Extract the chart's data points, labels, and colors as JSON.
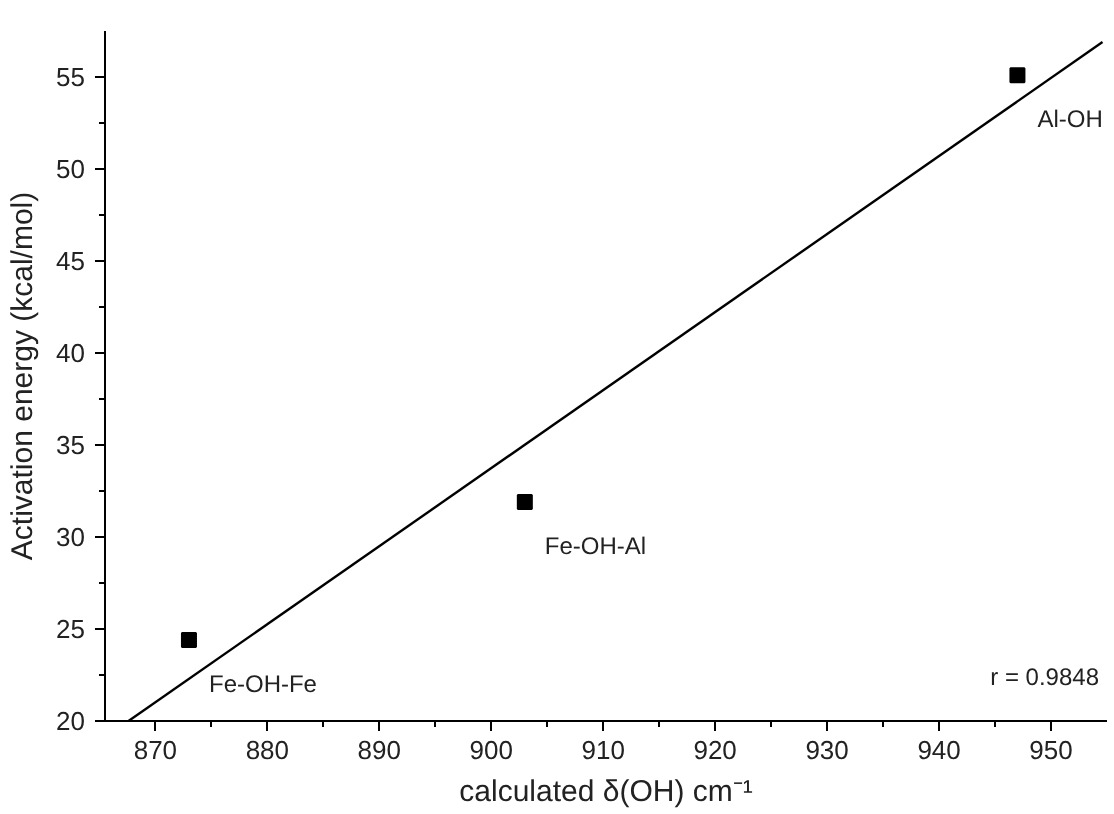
{
  "chart_data": {
    "type": "scatter",
    "xlabel": "calculated δ(OH) cm⁻¹",
    "ylabel": "Activation energy (kcal/mol)",
    "x": [
      873,
      903,
      947
    ],
    "series": [
      {
        "color": "#000000",
        "values": [
          24.4,
          31.9,
          55.1
        ],
        "marker": "square"
      },
      {
        "type": "line",
        "color": "#000000",
        "x": [
          867.6,
          954.6
        ],
        "values": [
          20,
          56.9
        ],
        "marker": "none",
        "line_style": "solid"
      }
    ],
    "xlim": [
      865.5,
      955
    ],
    "xticks": [
      870,
      880,
      890,
      900,
      910,
      920,
      930,
      940,
      950
    ],
    "ylim": [
      20,
      57.5
    ],
    "yticks": [
      20,
      25,
      30,
      35,
      40,
      45,
      50,
      55
    ],
    "grid": false,
    "annotations": [
      {
        "text": "Al-OH",
        "x": 947,
        "y": 55.1
      },
      {
        "text": "Fe-OH-Al",
        "x": 903,
        "y": 31.9
      },
      {
        "text": "Fe-OH-Fe",
        "x": 873,
        "y": 24.4
      },
      "r = 0.9848"
    ]
  }
}
